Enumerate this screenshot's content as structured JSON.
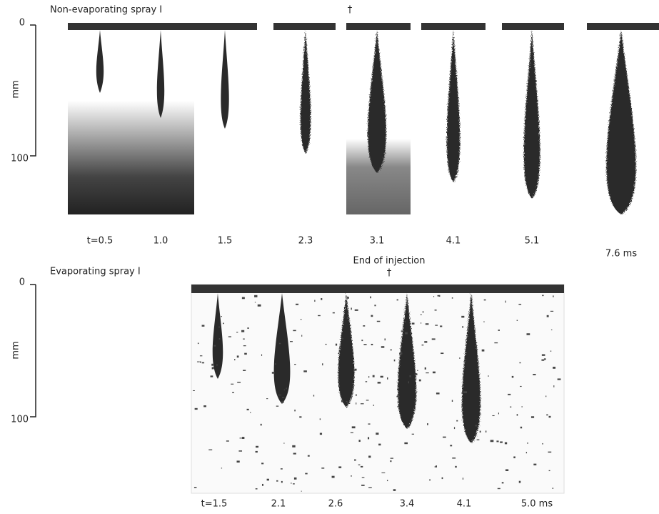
{
  "panels": [
    {
      "title": "Non-evaporating spray I",
      "axis": {
        "ticks": [
          "0",
          "100"
        ],
        "label": "mm"
      },
      "frames": [
        "t=0.5",
        "1.0",
        "1.5",
        "2.3",
        "3.1",
        "4.1",
        "5.1",
        "7.6 ms"
      ]
    },
    {
      "title": "Evaporating spray I",
      "annotation": "End of injection",
      "axis": {
        "ticks": [
          "0",
          "100"
        ],
        "label": "mm"
      },
      "frames": [
        "t=1.5",
        "2.1",
        "2.6",
        "3.4",
        "4.1",
        "5.0 ms"
      ]
    }
  ]
}
